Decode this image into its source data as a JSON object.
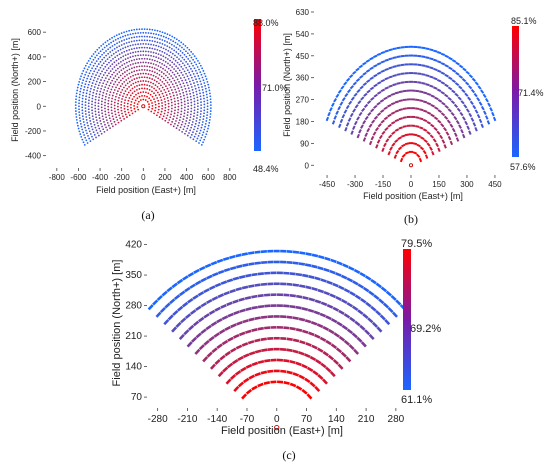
{
  "chart_data": [
    {
      "type": "scatter",
      "panel_label": "(a)",
      "xlabel": "Field position (East+) [m]",
      "ylabel": "Field position (North+) [m]",
      "xlim": [
        -900,
        950
      ],
      "ylim": [
        -500,
        650
      ],
      "xticks": [
        "-800",
        "-600",
        "-400",
        "-200",
        "0",
        "200",
        "400",
        "600",
        "800"
      ],
      "yticks": [
        "-400",
        "-200",
        "0",
        "200",
        "400",
        "600"
      ],
      "colorbar": {
        "top": "88.0%",
        "mid": "71.0%",
        "bottom": "48.4%",
        "top_color": "#ff0000",
        "bottom_color": "#1a66ff"
      },
      "marker": "dot",
      "field": {
        "rows": 20,
        "first_radius": 55,
        "radius_step": 30,
        "angle_min_deg": -120,
        "angle_max_deg": 120,
        "spacing_m": 24
      }
    },
    {
      "type": "scatter",
      "panel_label": "(b)",
      "xlabel": "Field position (East+) [m]",
      "ylabel": "Field position (North+) [m]",
      "xlim": [
        -520,
        520
      ],
      "ylim": [
        -40,
        630
      ],
      "xticks": [
        "-450",
        "-300",
        "-150",
        "0",
        "150",
        "300",
        "450"
      ],
      "yticks": [
        "0",
        "90",
        "180",
        "270",
        "360",
        "450",
        "540",
        "630"
      ],
      "colorbar": {
        "top": "85.1%",
        "mid": "71.4%",
        "bottom": "57.6%",
        "top_color": "#ff0000",
        "bottom_color": "#1a66ff"
      },
      "marker": "dash",
      "field": {
        "rows": 13,
        "first_radius": 55,
        "radius_step": 36,
        "angle_min_deg": -67,
        "angle_max_deg": 67,
        "spacing_m": 22
      }
    },
    {
      "type": "scatter",
      "panel_label": "(c)",
      "xlabel": "Field position (East+) [m]",
      "ylabel": "Field position (North+) [m]",
      "xlim": [
        -305,
        285
      ],
      "ylim": [
        45,
        435
      ],
      "xticks": [
        "-280",
        "-210",
        "-140",
        "-70",
        "0",
        "70",
        "140",
        "210",
        "280"
      ],
      "yticks": [
        "70",
        "140",
        "210",
        "280",
        "350",
        "420"
      ],
      "colorbar": {
        "top": "79.5%",
        "mid": "69.2%",
        "bottom": "61.1%",
        "top_color": "#ff0000",
        "bottom_color": "#1a66ff"
      },
      "marker": "dash",
      "field": {
        "rows": 13,
        "first_radius": 105,
        "radius_step": 25,
        "angle_min_deg": -47,
        "angle_max_deg": 47,
        "spacing_m": 15
      }
    }
  ]
}
